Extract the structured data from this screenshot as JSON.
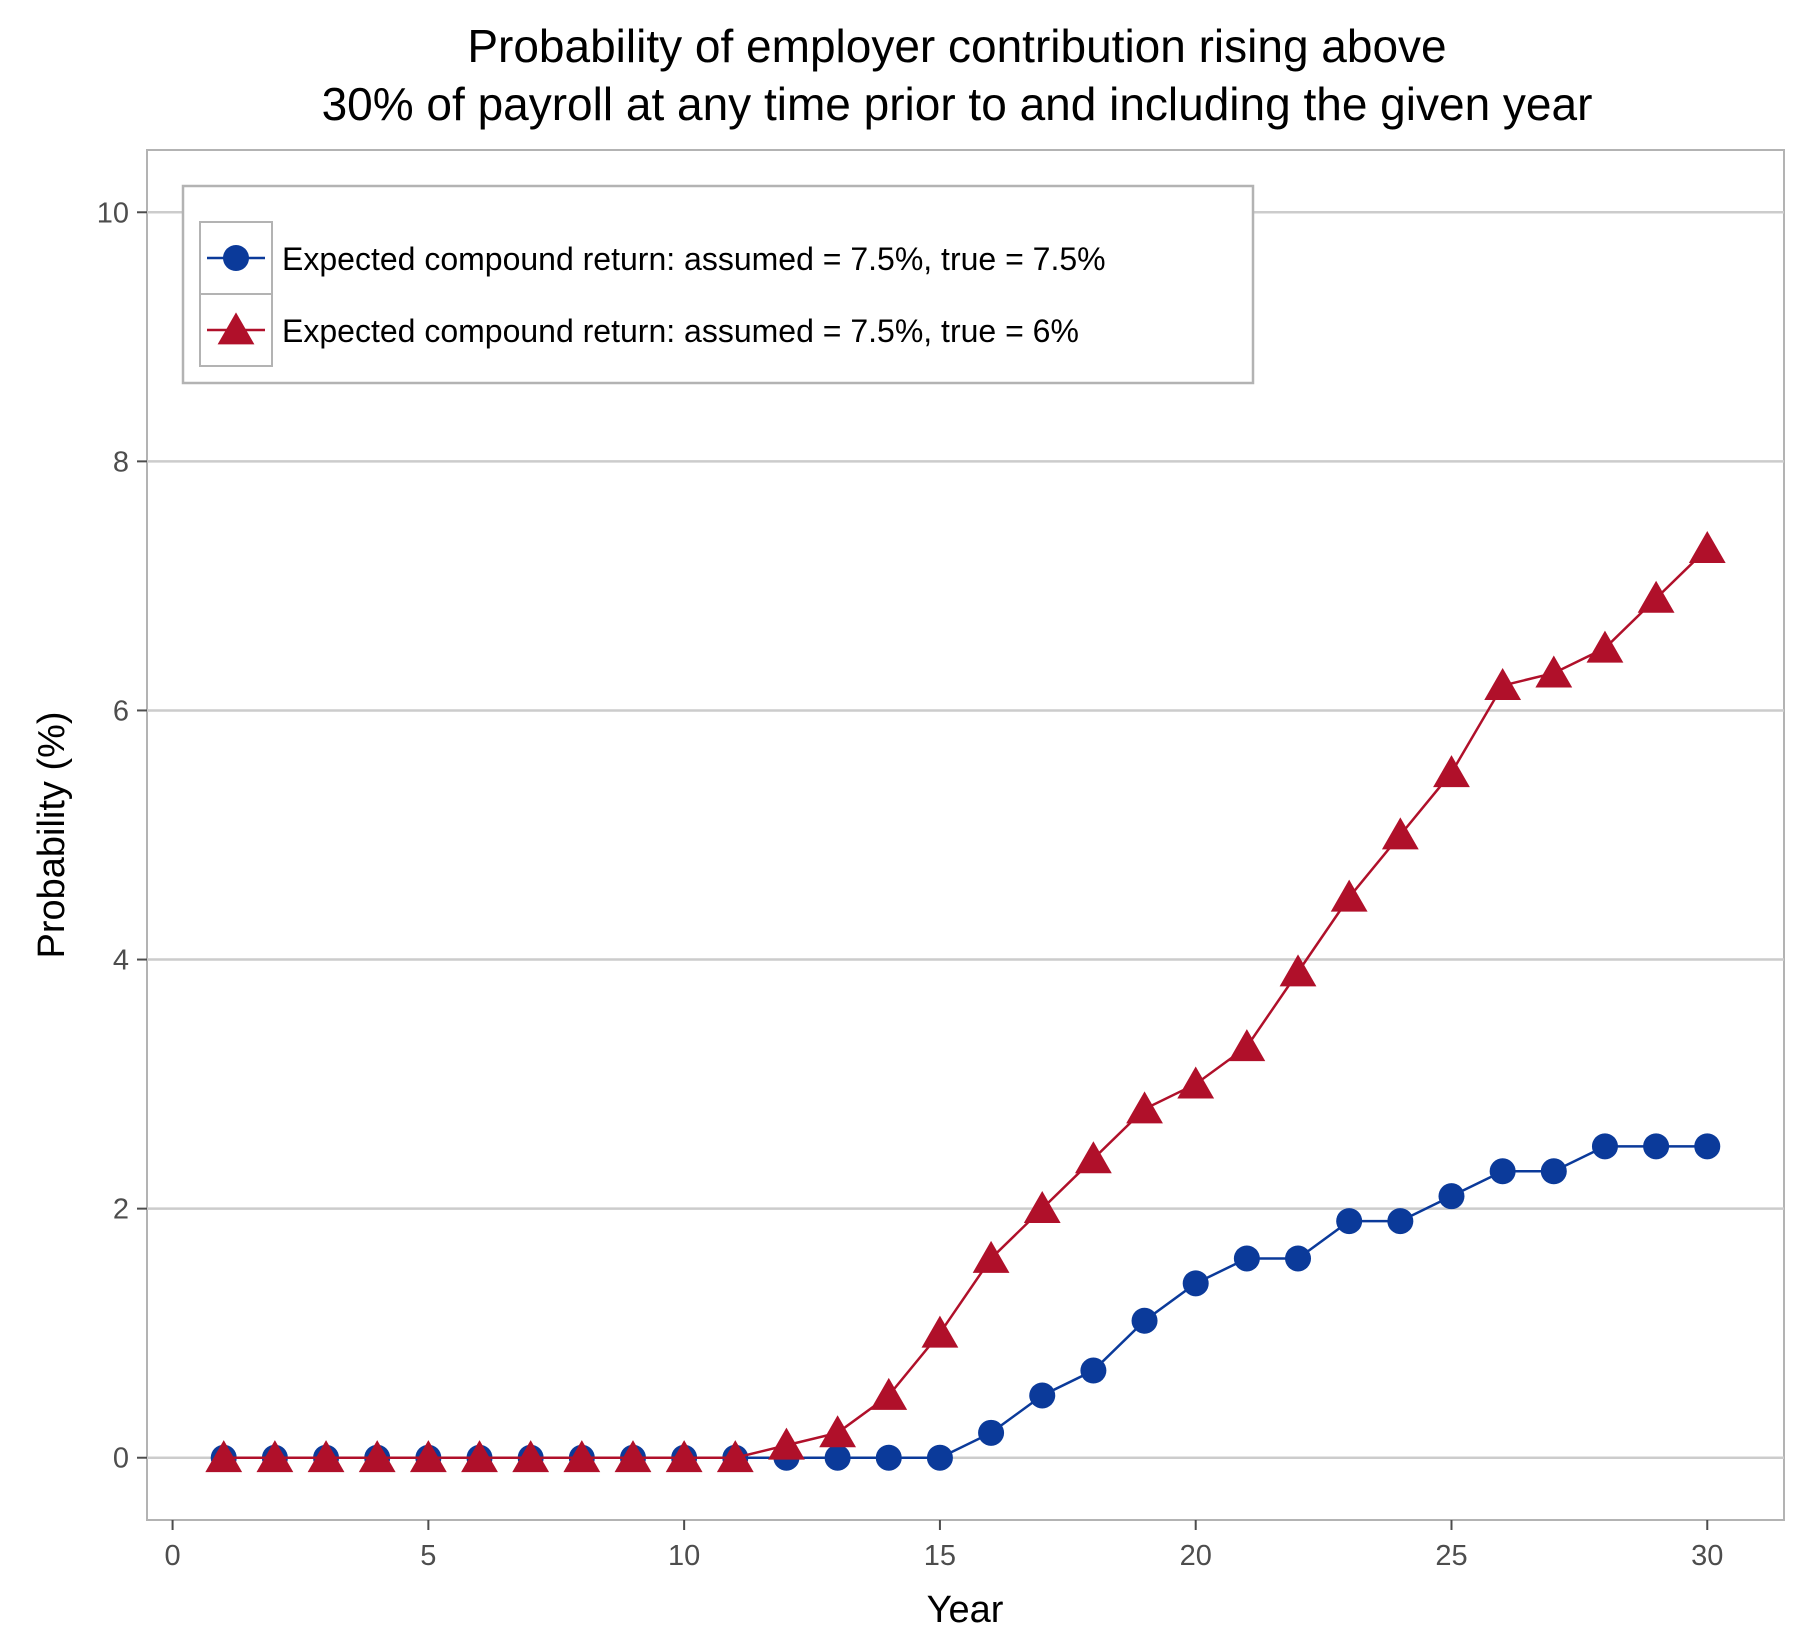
{
  "chart_data": {
    "type": "line",
    "title": [
      "Probability of employer contribution rising above",
      "30% of payroll at any time prior to and including the given year"
    ],
    "xlabel": "Year",
    "ylabel": "Probability (%)",
    "xlim": [
      -0.5,
      31.5
    ],
    "ylim": [
      -0.5,
      10.5
    ],
    "x_ticks": [
      0,
      5,
      10,
      15,
      20,
      25,
      30
    ],
    "y_ticks": [
      0,
      2,
      4,
      6,
      8,
      10
    ],
    "grid": "horizontal major",
    "legend_position": "top-left",
    "x": [
      1,
      2,
      3,
      4,
      5,
      6,
      7,
      8,
      9,
      10,
      11,
      12,
      13,
      14,
      15,
      16,
      17,
      18,
      19,
      20,
      21,
      22,
      23,
      24,
      25,
      26,
      27,
      28,
      29,
      30
    ],
    "series": [
      {
        "name": "Expected compound return: assumed = 7.5%, true = 7.5%",
        "color": "#0b3a9a",
        "marker": "circle",
        "values": [
          0,
          0,
          0,
          0,
          0,
          0,
          0,
          0,
          0,
          0,
          0,
          0,
          0,
          0,
          0,
          0.2,
          0.5,
          0.7,
          1.1,
          1.4,
          1.6,
          1.6,
          1.9,
          1.9,
          2.1,
          2.3,
          2.3,
          2.5,
          2.5,
          2.5
        ]
      },
      {
        "name": "Expected compound return: assumed = 7.5%, true = 6%",
        "color": "#b0102a",
        "marker": "triangle",
        "values": [
          0,
          0,
          0,
          0,
          0,
          0,
          0,
          0,
          0,
          0,
          0,
          0.1,
          0.2,
          0.5,
          1.0,
          1.6,
          2.0,
          2.4,
          2.8,
          3.0,
          3.3,
          3.9,
          4.5,
          5.0,
          5.5,
          6.2,
          6.3,
          6.5,
          6.9,
          7.3
        ]
      }
    ]
  }
}
